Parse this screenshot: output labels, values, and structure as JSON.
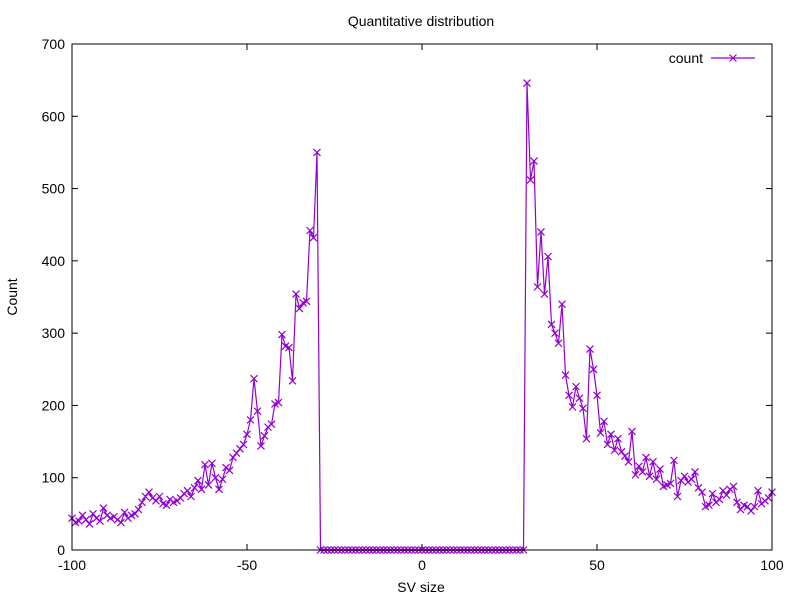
{
  "chart_data": {
    "type": "line",
    "title": "Quantitative distribution",
    "xlabel": "SV size",
    "ylabel": "Count",
    "xlim": [
      -100,
      100
    ],
    "ylim": [
      0,
      700
    ],
    "xticks": [
      -100,
      -50,
      0,
      50,
      100
    ],
    "yticks": [
      0,
      100,
      200,
      300,
      400,
      500,
      600,
      700
    ],
    "grid": false,
    "legend": "top-right",
    "series": [
      {
        "name": "count",
        "color": "#9400d3",
        "marker": "x",
        "points": [
          [
            -100,
            44
          ],
          [
            -99,
            38
          ],
          [
            -98,
            40
          ],
          [
            -97,
            48
          ],
          [
            -96,
            42
          ],
          [
            -95,
            36
          ],
          [
            -94,
            50
          ],
          [
            -93,
            44
          ],
          [
            -92,
            40
          ],
          [
            -91,
            58
          ],
          [
            -90,
            48
          ],
          [
            -89,
            44
          ],
          [
            -88,
            46
          ],
          [
            -87,
            42
          ],
          [
            -86,
            38
          ],
          [
            -85,
            52
          ],
          [
            -84,
            44
          ],
          [
            -83,
            48
          ],
          [
            -82,
            50
          ],
          [
            -81,
            56
          ],
          [
            -80,
            66
          ],
          [
            -79,
            74
          ],
          [
            -78,
            80
          ],
          [
            -77,
            72
          ],
          [
            -76,
            68
          ],
          [
            -75,
            74
          ],
          [
            -74,
            64
          ],
          [
            -73,
            62
          ],
          [
            -72,
            70
          ],
          [
            -71,
            66
          ],
          [
            -70,
            68
          ],
          [
            -69,
            72
          ],
          [
            -68,
            78
          ],
          [
            -67,
            82
          ],
          [
            -66,
            74
          ],
          [
            -65,
            86
          ],
          [
            -64,
            96
          ],
          [
            -63,
            84
          ],
          [
            -62,
            118
          ],
          [
            -61,
            90
          ],
          [
            -60,
            120
          ],
          [
            -59,
            100
          ],
          [
            -58,
            84
          ],
          [
            -57,
            98
          ],
          [
            -56,
            114
          ],
          [
            -55,
            110
          ],
          [
            -54,
            128
          ],
          [
            -53,
            134
          ],
          [
            -52,
            140
          ],
          [
            -51,
            146
          ],
          [
            -50,
            160
          ],
          [
            -49,
            180
          ],
          [
            -48,
            237
          ],
          [
            -47,
            192
          ],
          [
            -46,
            144
          ],
          [
            -45,
            158
          ],
          [
            -44,
            170
          ],
          [
            -43,
            174
          ],
          [
            -42,
            202
          ],
          [
            -41,
            204
          ],
          [
            -40,
            298
          ],
          [
            -39,
            282
          ],
          [
            -38,
            280
          ],
          [
            -37,
            234
          ],
          [
            -36,
            354
          ],
          [
            -35,
            334
          ],
          [
            -34,
            342
          ],
          [
            -33,
            344
          ],
          [
            -32,
            442
          ],
          [
            -31,
            432
          ],
          [
            -30,
            550
          ],
          [
            -29,
            0
          ],
          [
            -28,
            0
          ],
          [
            -27,
            0
          ],
          [
            -26,
            0
          ],
          [
            -25,
            0
          ],
          [
            -24,
            0
          ],
          [
            -23,
            0
          ],
          [
            -22,
            0
          ],
          [
            -21,
            0
          ],
          [
            -20,
            0
          ],
          [
            -19,
            0
          ],
          [
            -18,
            0
          ],
          [
            -17,
            0
          ],
          [
            -16,
            0
          ],
          [
            -15,
            0
          ],
          [
            -14,
            0
          ],
          [
            -13,
            0
          ],
          [
            -12,
            0
          ],
          [
            -11,
            0
          ],
          [
            -10,
            0
          ],
          [
            -9,
            0
          ],
          [
            -8,
            0
          ],
          [
            -7,
            0
          ],
          [
            -6,
            0
          ],
          [
            -5,
            0
          ],
          [
            -4,
            0
          ],
          [
            -3,
            0
          ],
          [
            -2,
            0
          ],
          [
            -1,
            0
          ],
          [
            0,
            0
          ],
          [
            1,
            0
          ],
          [
            2,
            0
          ],
          [
            3,
            0
          ],
          [
            4,
            0
          ],
          [
            5,
            0
          ],
          [
            6,
            0
          ],
          [
            7,
            0
          ],
          [
            8,
            0
          ],
          [
            9,
            0
          ],
          [
            10,
            0
          ],
          [
            11,
            0
          ],
          [
            12,
            0
          ],
          [
            13,
            0
          ],
          [
            14,
            0
          ],
          [
            15,
            0
          ],
          [
            16,
            0
          ],
          [
            17,
            0
          ],
          [
            18,
            0
          ],
          [
            19,
            0
          ],
          [
            20,
            0
          ],
          [
            21,
            0
          ],
          [
            22,
            0
          ],
          [
            23,
            0
          ],
          [
            24,
            0
          ],
          [
            25,
            0
          ],
          [
            26,
            0
          ],
          [
            27,
            0
          ],
          [
            28,
            0
          ],
          [
            29,
            0
          ],
          [
            30,
            646
          ],
          [
            31,
            512
          ],
          [
            32,
            538
          ],
          [
            33,
            364
          ],
          [
            34,
            440
          ],
          [
            35,
            354
          ],
          [
            36,
            406
          ],
          [
            37,
            312
          ],
          [
            38,
            300
          ],
          [
            39,
            286
          ],
          [
            40,
            340
          ],
          [
            41,
            242
          ],
          [
            42,
            214
          ],
          [
            43,
            198
          ],
          [
            44,
            226
          ],
          [
            45,
            210
          ],
          [
            46,
            196
          ],
          [
            47,
            154
          ],
          [
            48,
            278
          ],
          [
            49,
            250
          ],
          [
            50,
            214
          ],
          [
            51,
            162
          ],
          [
            52,
            178
          ],
          [
            53,
            146
          ],
          [
            54,
            160
          ],
          [
            55,
            138
          ],
          [
            56,
            154
          ],
          [
            57,
            136
          ],
          [
            58,
            130
          ],
          [
            59,
            122
          ],
          [
            60,
            164
          ],
          [
            61,
            104
          ],
          [
            62,
            116
          ],
          [
            63,
            108
          ],
          [
            64,
            128
          ],
          [
            65,
            102
          ],
          [
            66,
            122
          ],
          [
            67,
            98
          ],
          [
            68,
            112
          ],
          [
            69,
            88
          ],
          [
            70,
            90
          ],
          [
            71,
            92
          ],
          [
            72,
            124
          ],
          [
            73,
            74
          ],
          [
            74,
            96
          ],
          [
            75,
            102
          ],
          [
            76,
            94
          ],
          [
            77,
            98
          ],
          [
            78,
            108
          ],
          [
            79,
            86
          ],
          [
            80,
            80
          ],
          [
            81,
            60
          ],
          [
            82,
            62
          ],
          [
            83,
            78
          ],
          [
            84,
            66
          ],
          [
            85,
            70
          ],
          [
            86,
            82
          ],
          [
            87,
            76
          ],
          [
            88,
            84
          ],
          [
            89,
            88
          ],
          [
            90,
            66
          ],
          [
            91,
            56
          ],
          [
            92,
            62
          ],
          [
            93,
            60
          ],
          [
            94,
            54
          ],
          [
            95,
            60
          ],
          [
            96,
            82
          ],
          [
            97,
            64
          ],
          [
            98,
            68
          ],
          [
            99,
            72
          ],
          [
            100,
            80
          ]
        ]
      }
    ]
  }
}
